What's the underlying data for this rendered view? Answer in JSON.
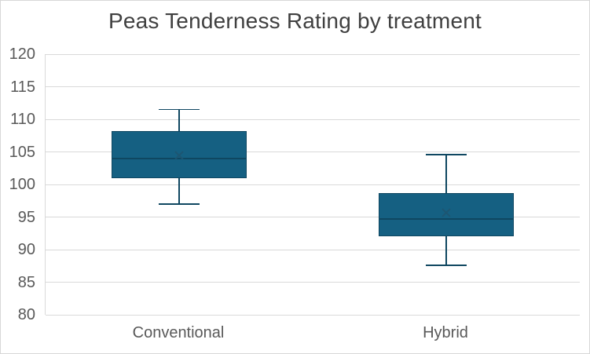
{
  "chart_title": "Peas Tenderness Rating by treatment",
  "chart_data": {
    "type": "boxplot",
    "title": "Peas Tenderness Rating by treatment",
    "categories": [
      "Conventional",
      "Hybrid"
    ],
    "xlabel": "",
    "ylabel": "",
    "ylim": [
      80,
      120
    ],
    "y_ticks": [
      120,
      115,
      110,
      105,
      100,
      95,
      90,
      85,
      80
    ],
    "grid": true,
    "legend": "none",
    "series": [
      {
        "name": "Conventional",
        "whisker_low": 97,
        "q1": 101,
        "median": 104,
        "mean": 104.5,
        "q3": 108.2,
        "whisker_high": 111.5
      },
      {
        "name": "Hybrid",
        "whisker_low": 87.6,
        "q1": 92,
        "median": 94.7,
        "mean": 95.7,
        "q3": 98.7,
        "whisker_high": 104.6
      }
    ],
    "colors": {
      "box_fill": "#156082",
      "box_border": "#0f4761",
      "median_line": "#0f4761",
      "whisker": "#0f4761",
      "mean_marker": "#1d5672",
      "gridline": "#d9d9d9",
      "axis_text": "#595959",
      "title_text": "#404040"
    }
  }
}
